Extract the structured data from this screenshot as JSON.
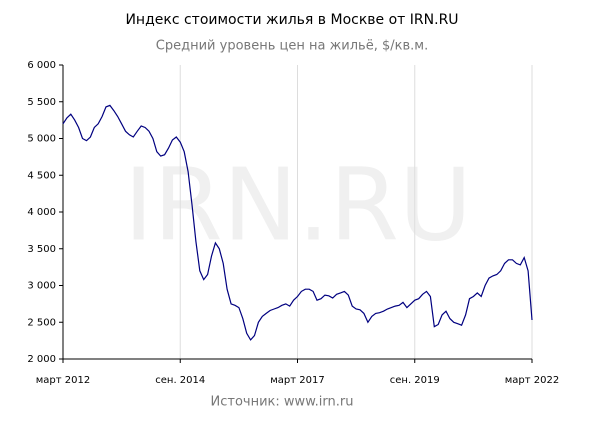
{
  "chart_data": {
    "type": "line",
    "title": "Индекс стоимости жилья в Москве от IRN.RU",
    "subtitle": "Средний уровень цен на жильё, $/кв.м.",
    "source": "Источник: www.irn.ru",
    "watermark": "IRN.RU",
    "color": "#000080",
    "grid": true,
    "x": [
      "2012-03",
      "2012-04",
      "2012-05",
      "2012-06",
      "2012-07",
      "2012-08",
      "2012-09",
      "2012-10",
      "2012-11",
      "2012-12",
      "2013-01",
      "2013-02",
      "2013-03",
      "2013-04",
      "2013-05",
      "2013-06",
      "2013-07",
      "2013-08",
      "2013-09",
      "2013-10",
      "2013-11",
      "2013-12",
      "2014-01",
      "2014-02",
      "2014-03",
      "2014-04",
      "2014-05",
      "2014-06",
      "2014-07",
      "2014-08",
      "2014-09",
      "2014-10",
      "2014-11",
      "2014-12",
      "2015-01",
      "2015-02",
      "2015-03",
      "2015-04",
      "2015-05",
      "2015-06",
      "2015-07",
      "2015-08",
      "2015-09",
      "2015-10",
      "2015-11",
      "2015-12",
      "2016-01",
      "2016-02",
      "2016-03",
      "2016-04",
      "2016-05",
      "2016-06",
      "2016-07",
      "2016-08",
      "2016-09",
      "2016-10",
      "2016-11",
      "2016-12",
      "2017-01",
      "2017-02",
      "2017-03",
      "2017-04",
      "2017-05",
      "2017-06",
      "2017-07",
      "2017-08",
      "2017-09",
      "2017-10",
      "2017-11",
      "2017-12",
      "2018-01",
      "2018-02",
      "2018-03",
      "2018-04",
      "2018-05",
      "2018-06",
      "2018-07",
      "2018-08",
      "2018-09",
      "2018-10",
      "2018-11",
      "2018-12",
      "2019-01",
      "2019-02",
      "2019-03",
      "2019-04",
      "2019-05",
      "2019-06",
      "2019-07",
      "2019-08",
      "2019-09",
      "2019-10",
      "2019-11",
      "2019-12",
      "2020-01",
      "2020-02",
      "2020-03",
      "2020-04",
      "2020-05",
      "2020-06",
      "2020-07",
      "2020-08",
      "2020-09",
      "2020-10",
      "2020-11",
      "2020-12",
      "2021-01",
      "2021-02",
      "2021-03",
      "2021-04",
      "2021-05",
      "2021-06",
      "2021-07",
      "2021-08",
      "2021-09",
      "2021-10",
      "2021-11",
      "2021-12",
      "2022-01",
      "2022-02",
      "2022-03"
    ],
    "values": [
      5200,
      5280,
      5330,
      5250,
      5150,
      5000,
      4970,
      5020,
      5150,
      5200,
      5300,
      5430,
      5450,
      5380,
      5300,
      5200,
      5100,
      5050,
      5020,
      5100,
      5170,
      5150,
      5100,
      5000,
      4820,
      4760,
      4780,
      4870,
      4980,
      5020,
      4950,
      4820,
      4550,
      4100,
      3600,
      3200,
      3080,
      3150,
      3400,
      3580,
      3500,
      3300,
      2950,
      2750,
      2730,
      2700,
      2550,
      2350,
      2260,
      2320,
      2500,
      2580,
      2620,
      2660,
      2680,
      2700,
      2730,
      2750,
      2720,
      2800,
      2850,
      2920,
      2950,
      2950,
      2920,
      2800,
      2820,
      2870,
      2860,
      2830,
      2880,
      2900,
      2920,
      2870,
      2720,
      2680,
      2670,
      2620,
      2500,
      2580,
      2620,
      2630,
      2650,
      2680,
      2700,
      2720,
      2730,
      2770,
      2700,
      2750,
      2800,
      2820,
      2880,
      2920,
      2850,
      2440,
      2470,
      2600,
      2650,
      2550,
      2500,
      2480,
      2460,
      2600,
      2820,
      2850,
      2900,
      2850,
      3000,
      3100,
      3130,
      3150,
      3200,
      3300,
      3350,
      3350,
      3300,
      3280,
      3380,
      3200,
      2530
    ],
    "xlim": [
      "2012-03",
      "2022-03"
    ],
    "xticks": [
      {
        "value": "2012-03",
        "label": "март 2012"
      },
      {
        "value": "2014-09",
        "label": "сен. 2014"
      },
      {
        "value": "2017-03",
        "label": "март 2017"
      },
      {
        "value": "2019-09",
        "label": "сен. 2019"
      },
      {
        "value": "2022-03",
        "label": "март 2022"
      }
    ],
    "ylim": [
      2000,
      6000
    ],
    "yticks": [
      {
        "value": 2000,
        "label": "2 000"
      },
      {
        "value": 2500,
        "label": "2 500"
      },
      {
        "value": 3000,
        "label": "3 000"
      },
      {
        "value": 3500,
        "label": "3 500"
      },
      {
        "value": 4000,
        "label": "4 000"
      },
      {
        "value": 4500,
        "label": "4 500"
      },
      {
        "value": 5000,
        "label": "5 000"
      },
      {
        "value": 5500,
        "label": "5 500"
      },
      {
        "value": 6000,
        "label": "6 000"
      }
    ]
  }
}
